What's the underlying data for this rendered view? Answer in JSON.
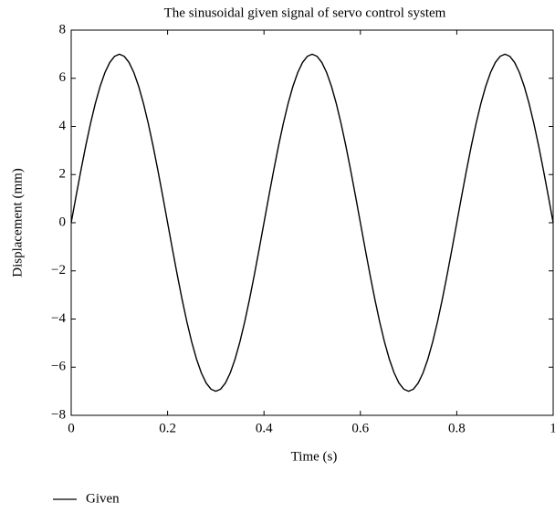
{
  "chart_data": {
    "type": "line",
    "title": "The sinusoidal given signal of servo control system",
    "xlabel": "Time (s)",
    "ylabel": "Displacement (mm)",
    "x": [
      0,
      0.01,
      0.02,
      0.03,
      0.04,
      0.05,
      0.06,
      0.07,
      0.08,
      0.09,
      0.1,
      0.11,
      0.12,
      0.13,
      0.14,
      0.15,
      0.16,
      0.17,
      0.18,
      0.19,
      0.2,
      0.21,
      0.22,
      0.23,
      0.24,
      0.25,
      0.26,
      0.27,
      0.28,
      0.29,
      0.3,
      0.31,
      0.32,
      0.33,
      0.34,
      0.35,
      0.36,
      0.37,
      0.38,
      0.39,
      0.4,
      0.41,
      0.42,
      0.43,
      0.44,
      0.45,
      0.46,
      0.47,
      0.48,
      0.49,
      0.5,
      0.51,
      0.52,
      0.53,
      0.54,
      0.55,
      0.56,
      0.57,
      0.58,
      0.59,
      0.6,
      0.61,
      0.62,
      0.63,
      0.64,
      0.65,
      0.66,
      0.67,
      0.68,
      0.69,
      0.7,
      0.71,
      0.72,
      0.73,
      0.74,
      0.75,
      0.76,
      0.77,
      0.78,
      0.79,
      0.8,
      0.81,
      0.82,
      0.83,
      0.84,
      0.85,
      0.86,
      0.87,
      0.88,
      0.89,
      0.9,
      0.91,
      0.92,
      0.93,
      0.94,
      0.95,
      0.96,
      0.97,
      0.98,
      0.99,
      1
    ],
    "series": [
      {
        "name": "Given",
        "color": "#000000",
        "values": [
          0,
          1.095,
          2.163,
          3.178,
          4.114,
          4.95,
          5.663,
          6.237,
          6.657,
          6.914,
          7,
          6.914,
          6.657,
          6.237,
          5.663,
          4.95,
          4.114,
          3.178,
          2.163,
          1.095,
          0,
          -1.095,
          -2.163,
          -3.178,
          -4.114,
          -4.95,
          -5.663,
          -6.237,
          -6.657,
          -6.914,
          -7,
          -6.914,
          -6.657,
          -6.237,
          -5.663,
          -4.95,
          -4.114,
          -3.178,
          -2.163,
          -1.095,
          0,
          1.095,
          2.163,
          3.178,
          4.114,
          4.95,
          5.663,
          6.237,
          6.657,
          6.914,
          7,
          6.914,
          6.657,
          6.237,
          5.663,
          4.95,
          4.114,
          3.178,
          2.163,
          1.095,
          0,
          -1.095,
          -2.163,
          -3.178,
          -4.114,
          -4.95,
          -5.663,
          -6.237,
          -6.657,
          -6.914,
          -7,
          -6.914,
          -6.657,
          -6.237,
          -5.663,
          -4.95,
          -4.114,
          -3.178,
          -2.163,
          -1.095,
          0,
          1.095,
          2.163,
          3.178,
          4.114,
          4.95,
          5.663,
          6.237,
          6.657,
          6.914,
          7,
          6.914,
          6.657,
          6.237,
          5.663,
          4.95,
          4.114,
          3.178,
          2.163,
          1.095,
          0
        ]
      }
    ],
    "xlim": [
      0,
      1
    ],
    "xticks": [
      0,
      0.2,
      0.4,
      0.6,
      0.8,
      1
    ],
    "ylim": [
      -8,
      8
    ],
    "yticks": [
      {
        "value": -8,
        "label": "−8"
      },
      {
        "value": -6,
        "label": "−6"
      },
      {
        "value": -4,
        "label": "−4"
      },
      {
        "value": -2,
        "label": "−2"
      },
      0,
      2,
      4,
      6,
      8
    ],
    "legend": "bottom-left",
    "grid": false
  }
}
